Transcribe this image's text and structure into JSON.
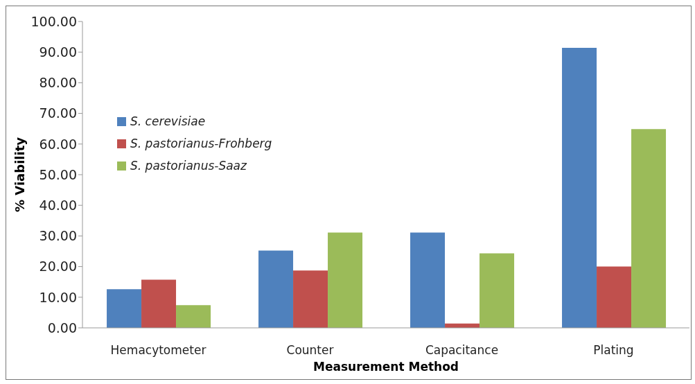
{
  "chart_data": {
    "type": "bar",
    "xlabel": "Measurement Method",
    "ylabel": "% Viability",
    "categories": [
      "Hemacytometer",
      "Counter",
      "Capacitance",
      "Plating"
    ],
    "series": [
      {
        "name": "S. cerevisiae",
        "color": "#4f81bd",
        "values": [
          12.6,
          25.2,
          31.1,
          91.4
        ]
      },
      {
        "name": "S. pastorianus-Frohberg",
        "color": "#c0504d",
        "values": [
          15.7,
          18.7,
          1.4,
          20.0
        ]
      },
      {
        "name": "S. pastorianus-Saaz",
        "color": "#9bbb59",
        "values": [
          7.4,
          31.1,
          24.3,
          64.9
        ]
      }
    ],
    "ylim": [
      0,
      100
    ],
    "yticks": [
      {
        "value": 0,
        "label": "0.00"
      },
      {
        "value": 10,
        "label": "10.00"
      },
      {
        "value": 20,
        "label": "20.00"
      },
      {
        "value": 30,
        "label": "30.00"
      },
      {
        "value": 40,
        "label": "40.00"
      },
      {
        "value": 50,
        "label": "50.00"
      },
      {
        "value": 60,
        "label": "60.00"
      },
      {
        "value": 70,
        "label": "70.00"
      },
      {
        "value": 80,
        "label": "80.00"
      },
      {
        "value": 90,
        "label": "90.00"
      },
      {
        "value": 100,
        "label": "100.00"
      }
    ],
    "grid": false,
    "legend": "top left"
  }
}
